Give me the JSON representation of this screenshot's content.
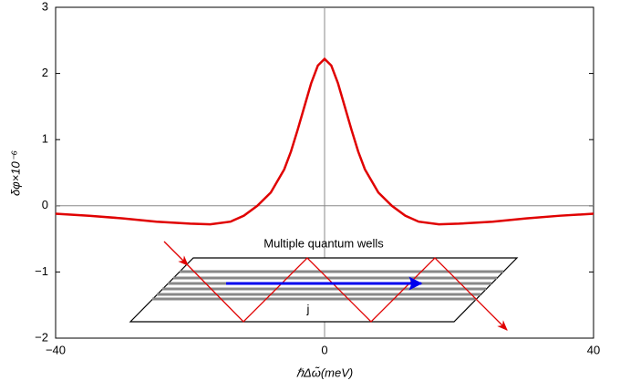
{
  "chart_data": {
    "type": "line",
    "xlabel": "ℏΔω̃(meV)",
    "ylabel": "δφ×10⁻⁶",
    "x": [
      -40,
      -35,
      -30,
      -25,
      -20,
      -17,
      -14,
      -12,
      -10,
      -8,
      -6,
      -5,
      -4,
      -3,
      -2,
      -1,
      0,
      1,
      2,
      3,
      4,
      5,
      6,
      8,
      10,
      12,
      14,
      17,
      20,
      25,
      30,
      35,
      40
    ],
    "series": [
      {
        "color": "#e00000",
        "values": [
          -0.12,
          -0.15,
          -0.19,
          -0.24,
          -0.27,
          -0.28,
          -0.24,
          -0.15,
          0.0,
          0.2,
          0.55,
          0.82,
          1.15,
          1.5,
          1.85,
          2.12,
          2.22,
          2.12,
          1.85,
          1.5,
          1.15,
          0.82,
          0.55,
          0.2,
          0.0,
          -0.15,
          -0.24,
          -0.28,
          -0.27,
          -0.24,
          -0.19,
          -0.15,
          -0.12
        ]
      }
    ],
    "xlim": [
      -40,
      40
    ],
    "ylim": [
      -2,
      3
    ],
    "xticks": [
      {
        "value": -40,
        "label": "−40"
      },
      0,
      40
    ],
    "yticks": [
      {
        "value": -2,
        "label": "−2"
      },
      {
        "value": -1,
        "label": "−1"
      },
      0,
      1,
      2,
      3
    ],
    "annotations": [
      "Multiple quantum wells",
      "j"
    ]
  }
}
